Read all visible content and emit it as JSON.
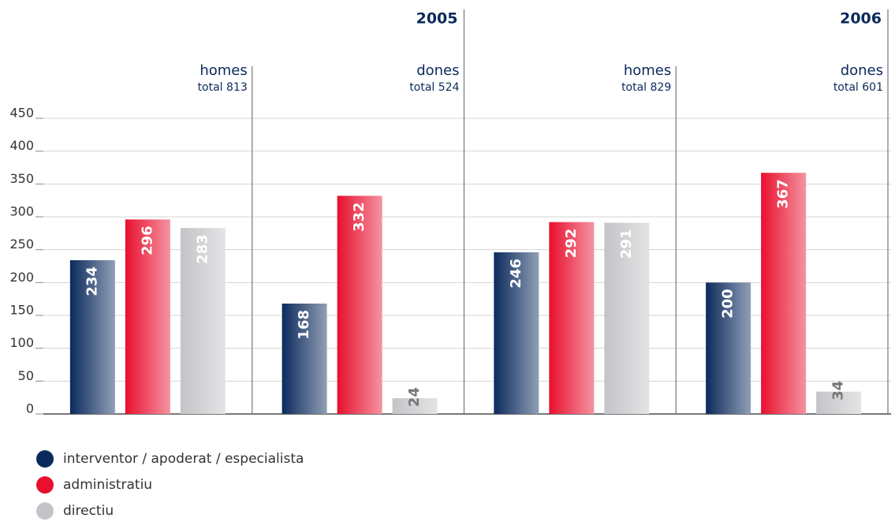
{
  "chart_data": {
    "type": "bar",
    "years": [
      "2005",
      "2006"
    ],
    "categories": [
      "homes",
      "dones",
      "homes",
      "dones"
    ],
    "category_totals": [
      "total 813",
      "total 524",
      "total 829",
      "total 601"
    ],
    "series": [
      {
        "name": "interventor / apoderat / especialista",
        "color": "#0b2a5c",
        "values": [
          234,
          168,
          246,
          200
        ]
      },
      {
        "name": "administratiu",
        "color": "#e8102e",
        "values": [
          296,
          332,
          292,
          367
        ]
      },
      {
        "name": "directiu",
        "color": "#c4c4c8",
        "values": [
          283,
          24,
          291,
          34
        ]
      }
    ],
    "ylim": [
      0,
      450
    ],
    "yticks": [
      0,
      50,
      100,
      150,
      200,
      250,
      300,
      350,
      400,
      450
    ],
    "grid": true
  }
}
